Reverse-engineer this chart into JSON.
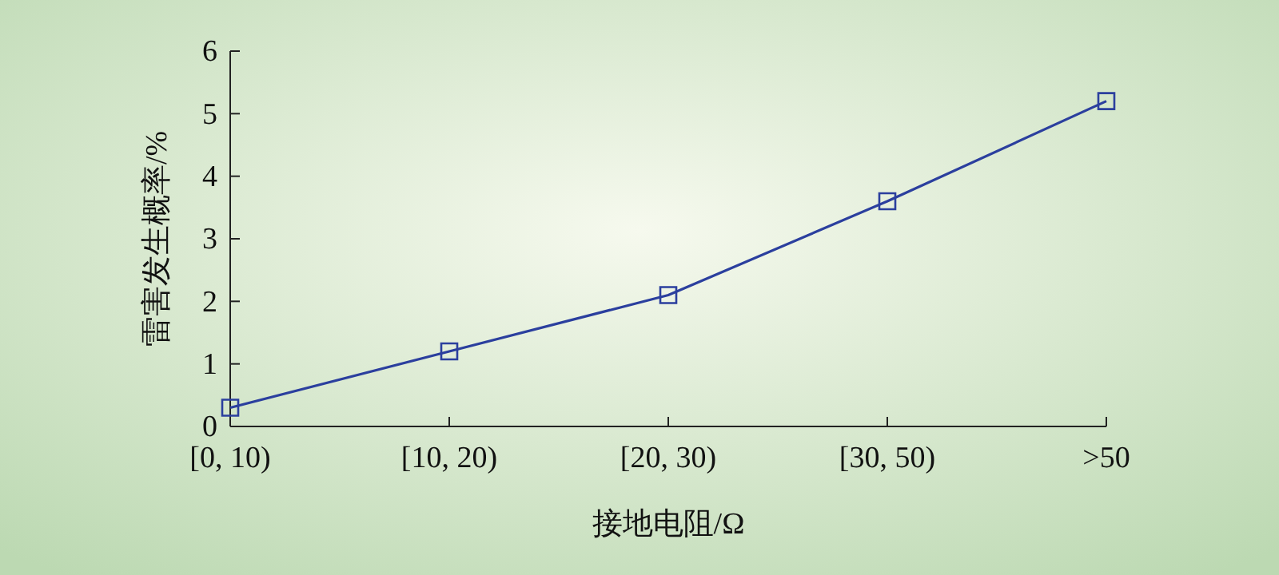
{
  "chart_data": {
    "type": "line",
    "xlabel": "接地电阻/Ω",
    "ylabel": "雷害发生概率/%",
    "categories": [
      "[0, 10)",
      "[10, 20)",
      "[20, 30)",
      "[30, 50)",
      ">50"
    ],
    "series": [
      {
        "color": "#2b3f9e",
        "values": [
          0.3,
          1.2,
          2.1,
          3.6,
          5.2
        ]
      }
    ],
    "ylim": [
      0,
      6
    ],
    "yticks": [
      0,
      1,
      2,
      3,
      4,
      5,
      6
    ],
    "marker": "square",
    "line_style": "solid"
  }
}
